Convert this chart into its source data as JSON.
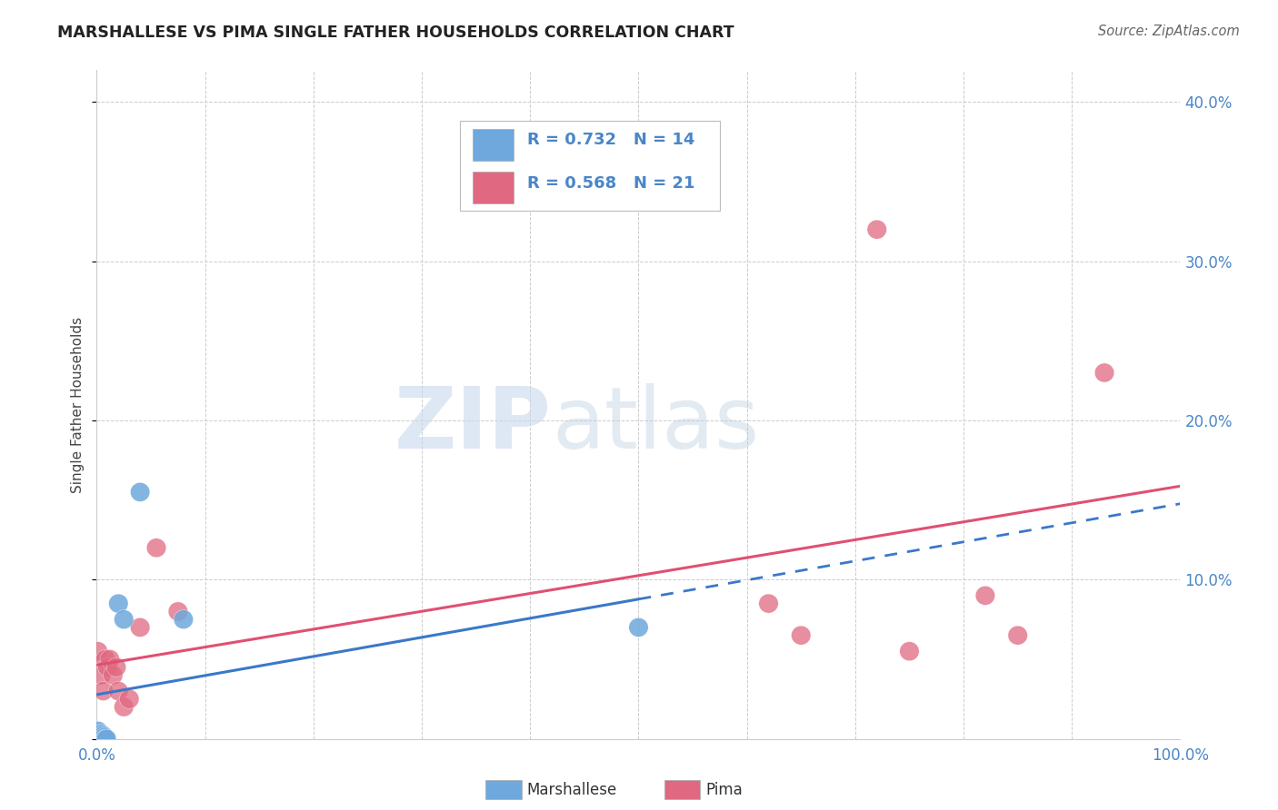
{
  "title": "MARSHALLESE VS PIMA SINGLE FATHER HOUSEHOLDS CORRELATION CHART",
  "source": "Source: ZipAtlas.com",
  "ylabel": "Single Father Households",
  "xlim": [
    0,
    1.0
  ],
  "ylim": [
    0,
    0.42
  ],
  "xticks": [
    0.0,
    0.1,
    0.2,
    0.3,
    0.4,
    0.5,
    0.6,
    0.7,
    0.8,
    0.9,
    1.0
  ],
  "xticklabels": [
    "0.0%",
    "",
    "",
    "",
    "",
    "",
    "",
    "",
    "",
    "",
    "100.0%"
  ],
  "yticks": [
    0.0,
    0.1,
    0.2,
    0.3,
    0.4
  ],
  "yticklabels": [
    "",
    "10.0%",
    "20.0%",
    "30.0%",
    "40.0%"
  ],
  "marshallese_color": "#6fa8dc",
  "pima_color": "#e06880",
  "marshallese_R": 0.732,
  "marshallese_N": 14,
  "pima_R": 0.568,
  "pima_N": 21,
  "background_color": "#ffffff",
  "grid_color": "#cccccc",
  "title_color": "#222222",
  "axis_color": "#4a86c8",
  "legend_R_color": "#4a86c8",
  "marshallese_x": [
    0.001,
    0.002,
    0.003,
    0.004,
    0.005,
    0.006,
    0.007,
    0.008,
    0.009,
    0.02,
    0.025,
    0.04,
    0.08,
    0.5
  ],
  "marshallese_y": [
    0.005,
    0.002,
    0.001,
    0.003,
    0.0,
    0.002,
    0.001,
    0.0,
    0.0,
    0.085,
    0.075,
    0.155,
    0.075,
    0.07
  ],
  "pima_x": [
    0.001,
    0.004,
    0.006,
    0.008,
    0.01,
    0.012,
    0.015,
    0.018,
    0.02,
    0.025,
    0.03,
    0.04,
    0.055,
    0.075,
    0.62,
    0.65,
    0.72,
    0.75,
    0.82,
    0.85,
    0.93
  ],
  "pima_y": [
    0.055,
    0.04,
    0.03,
    0.05,
    0.045,
    0.05,
    0.04,
    0.045,
    0.03,
    0.02,
    0.025,
    0.07,
    0.12,
    0.08,
    0.085,
    0.065,
    0.32,
    0.055,
    0.09,
    0.065,
    0.23
  ],
  "line_m_color": "#3a78c9",
  "line_p_color": "#e05070"
}
